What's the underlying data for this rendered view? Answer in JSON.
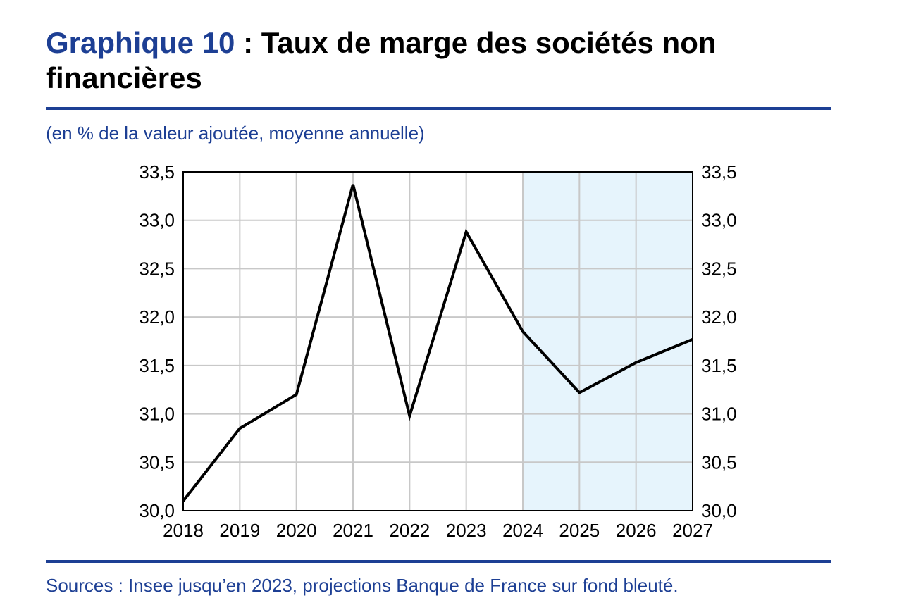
{
  "header": {
    "title_prefix": "Graphique 10",
    "title_rest": " : Taux de marge des sociétés non financières",
    "subtitle": "(en % de la valeur ajoutée, moyenne annuelle)"
  },
  "footer": {
    "sources": "Sources : Insee jusqu’en 2023, projections Banque de France sur fond bleuté."
  },
  "colors": {
    "accent": "#1d3f94",
    "projection_band": "#e6f4fc",
    "line": "#000000",
    "grid": "#c8c8c8"
  },
  "chart_data": {
    "type": "line",
    "title": "Taux de marge des sociétés non financières",
    "x": [
      "2018",
      "2019",
      "2020",
      "2021",
      "2022",
      "2023",
      "2024",
      "2025",
      "2026",
      "2027"
    ],
    "series": [
      {
        "values": [
          30.1,
          30.85,
          31.2,
          33.37,
          30.98,
          32.88,
          31.85,
          31.22,
          31.53,
          31.77
        ]
      }
    ],
    "ylim": [
      30.0,
      33.5
    ],
    "yticks": [
      "30,0",
      "30,5",
      "31,0",
      "31,5",
      "32,0",
      "32,5",
      "33,0",
      "33,5"
    ],
    "y_axis_both_sides": true,
    "grid": true,
    "projection_shaded_from": "2024",
    "projection_shaded_to": "2027"
  }
}
